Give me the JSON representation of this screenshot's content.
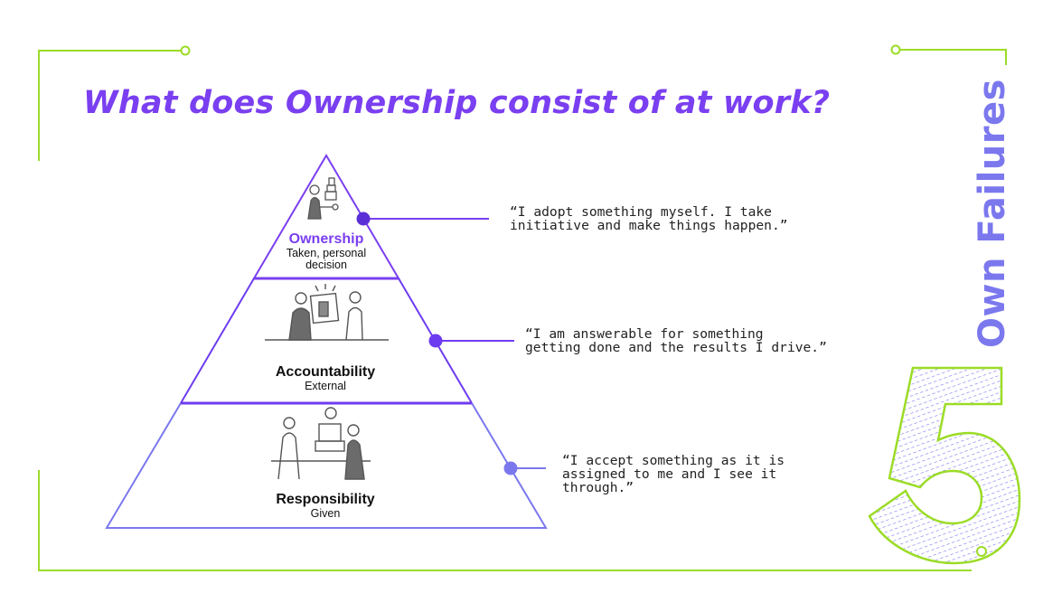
{
  "title": "What does Ownership consist of at work?",
  "side_title": "Own Failures",
  "number_mark": "5",
  "levels": [
    {
      "name": "Ownership",
      "subtitle": "Taken, personal decision",
      "quote": "“I adopt something myself. I take\ninitiative and make things happen.”",
      "color": "#7a3ff0"
    },
    {
      "name": "Accountability",
      "subtitle": "External",
      "quote": "“I am answerable for something\ngetting done and the results I drive.”",
      "color": "#6e3cf0"
    },
    {
      "name": "Responsibility",
      "subtitle": "Given",
      "quote": "“I accept something as it is\nassigned to me and I see it\nthrough.”",
      "color": "#7b78ee"
    }
  ],
  "colors": {
    "title": "#7a3ff0",
    "frame": "#9bdc26",
    "side_title": "#7b78ee"
  },
  "icons": [
    "person-idea-icon",
    "presentation-icon",
    "meeting-icon"
  ]
}
